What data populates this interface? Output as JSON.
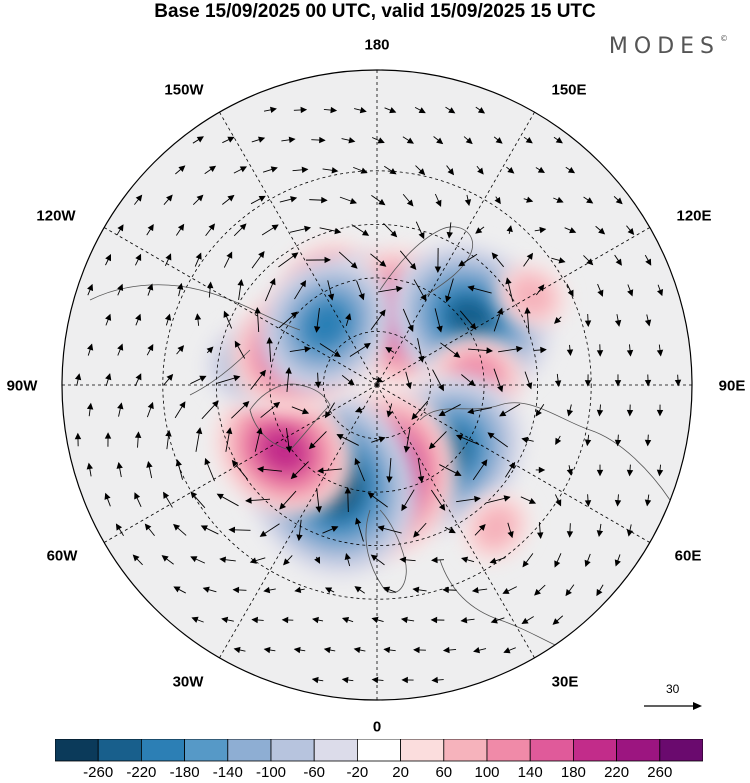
{
  "title": "Base 15/09/2025 00 UTC, valid 15/09/2025 15 UTC",
  "brand": {
    "name": "MODES",
    "mark": "©"
  },
  "map": {
    "projection": "north-polar-stereographic",
    "longitude_labels": {
      "top": "180",
      "bottom": "0",
      "left": "90W",
      "right": "90E",
      "upper_left_1": "150W",
      "upper_left_2": "120W",
      "upper_right_1": "150E",
      "upper_right_2": "120E",
      "lower_left_1": "60W",
      "lower_left_2": "30W",
      "lower_right_1": "60E",
      "lower_right_2": "30E"
    },
    "anomaly_centers": [
      {
        "lon": -150,
        "lat": 62,
        "value": 150
      },
      {
        "lon": -175,
        "lat": 66,
        "value": -90
      },
      {
        "lon": 160,
        "lat": 70,
        "value": 170
      },
      {
        "lon": 125,
        "lat": 58,
        "value": -230
      },
      {
        "lon": 95,
        "lat": 62,
        "value": 120
      },
      {
        "lon": 60,
        "lat": 74,
        "value": 80
      },
      {
        "lon": 45,
        "lat": 63,
        "value": -240
      },
      {
        "lon": 5,
        "lat": 65,
        "value": 240
      },
      {
        "lon": -25,
        "lat": 60,
        "value": -260
      },
      {
        "lon": -55,
        "lat": 58,
        "value": 200
      },
      {
        "lon": -100,
        "lat": 55,
        "value": -120
      },
      {
        "lon": -115,
        "lat": 66,
        "value": 180
      },
      {
        "lon": -140,
        "lat": 68,
        "value": -200
      },
      {
        "lon": 120,
        "lat": 40,
        "value": 60
      },
      {
        "lon": 40,
        "lat": 38,
        "value": 50
      }
    ]
  },
  "colorbar": {
    "colors": [
      "#0b3a5a",
      "#185f8c",
      "#2c7fb5",
      "#5699c7",
      "#8eaed3",
      "#b7c4de",
      "#dcdcea",
      "#ffffff",
      "#fbdddd",
      "#f6b3bc",
      "#f08aa8",
      "#e05a9a",
      "#c22c8a",
      "#9c1580",
      "#6a0a6e"
    ],
    "ticks": [
      "-260",
      "-220",
      "-180",
      "-140",
      "-100",
      "-60",
      "-20",
      "20",
      "60",
      "100",
      "140",
      "180",
      "220",
      "260"
    ]
  },
  "reference_vector": {
    "label": "30"
  }
}
